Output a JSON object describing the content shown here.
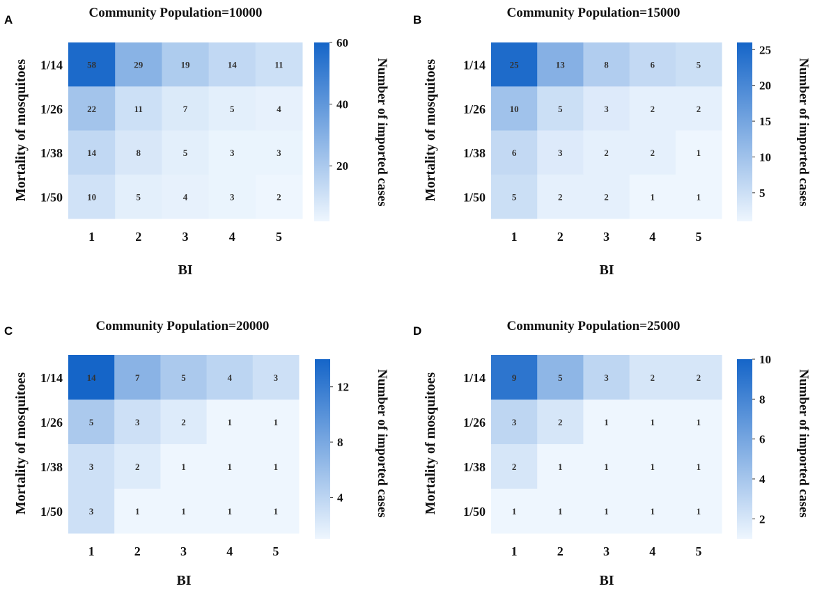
{
  "chart_data": [
    {
      "type": "heatmap",
      "panel": "A",
      "title": "Community Population=10000",
      "xlabel": "BI",
      "ylabel": "Mortality of mosquitoes",
      "colorbar_label": "Number of imported cases",
      "x_categories": [
        "1",
        "2",
        "3",
        "4",
        "5"
      ],
      "y_categories": [
        "1/14",
        "1/26",
        "1/38",
        "1/50"
      ],
      "values": [
        [
          58,
          29,
          19,
          14,
          11
        ],
        [
          22,
          11,
          7,
          5,
          4
        ],
        [
          14,
          8,
          5,
          3,
          3
        ],
        [
          10,
          5,
          4,
          3,
          2
        ]
      ],
      "colorbar_range": [
        2,
        60
      ],
      "colorbar_ticks": [
        20,
        40,
        60
      ]
    },
    {
      "type": "heatmap",
      "panel": "B",
      "title": "Community Population=15000",
      "xlabel": "BI",
      "ylabel": "Mortality of mosquitoes",
      "colorbar_label": "Number of imported cases",
      "x_categories": [
        "1",
        "2",
        "3",
        "4",
        "5"
      ],
      "y_categories": [
        "1/14",
        "1/26",
        "1/38",
        "1/50"
      ],
      "values": [
        [
          25,
          13,
          8,
          6,
          5
        ],
        [
          10,
          5,
          3,
          2,
          2
        ],
        [
          6,
          3,
          2,
          2,
          1
        ],
        [
          5,
          2,
          2,
          1,
          1
        ]
      ],
      "colorbar_range": [
        1,
        26
      ],
      "colorbar_ticks": [
        5,
        10,
        15,
        20,
        25
      ]
    },
    {
      "type": "heatmap",
      "panel": "C",
      "title": "Community Population=20000",
      "xlabel": "BI",
      "ylabel": "Mortality of mosquitoes",
      "colorbar_label": "Number of imported cases",
      "x_categories": [
        "1",
        "2",
        "3",
        "4",
        "5"
      ],
      "y_categories": [
        "1/14",
        "1/26",
        "1/38",
        "1/50"
      ],
      "values": [
        [
          14,
          7,
          5,
          4,
          3
        ],
        [
          5,
          3,
          2,
          1,
          1
        ],
        [
          3,
          2,
          1,
          1,
          1
        ],
        [
          3,
          1,
          1,
          1,
          1
        ]
      ],
      "colorbar_range": [
        1,
        14
      ],
      "colorbar_ticks": [
        4,
        8,
        12
      ]
    },
    {
      "type": "heatmap",
      "panel": "D",
      "title": "Community Population=25000",
      "xlabel": "BI",
      "ylabel": "Mortality of mosquitoes",
      "colorbar_label": "Number of imported cases",
      "x_categories": [
        "1",
        "2",
        "3",
        "4",
        "5"
      ],
      "y_categories": [
        "1/14",
        "1/26",
        "1/38",
        "1/50"
      ],
      "values": [
        [
          9,
          5,
          3,
          2,
          2
        ],
        [
          3,
          2,
          1,
          1,
          1
        ],
        [
          2,
          1,
          1,
          1,
          1
        ],
        [
          1,
          1,
          1,
          1,
          1
        ]
      ],
      "colorbar_range": [
        1,
        10
      ],
      "colorbar_ticks": [
        2,
        4,
        6,
        8,
        10
      ]
    }
  ],
  "colors": {
    "low": "#eef6fe",
    "high": "#1565c8",
    "text": "#111111"
  }
}
